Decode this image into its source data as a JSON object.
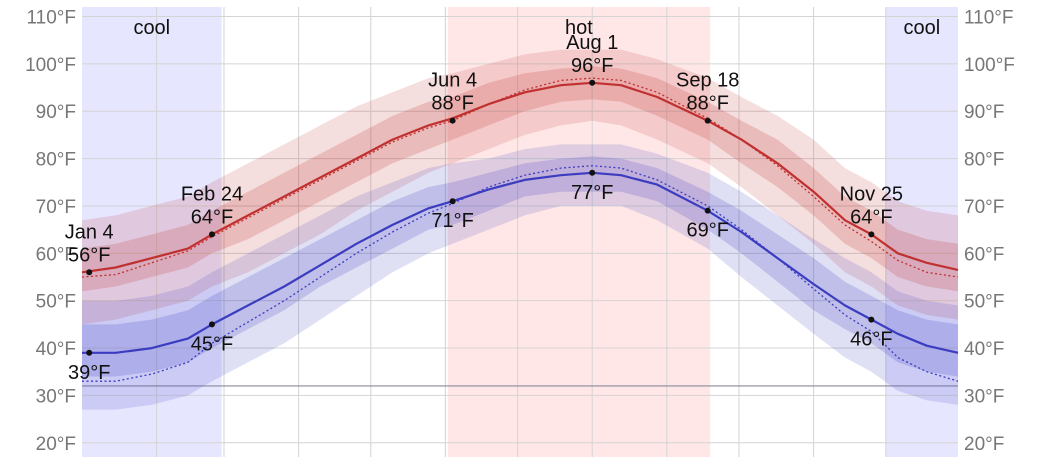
{
  "chart_data": {
    "type": "line",
    "y_ticks": [
      "20°F",
      "30°F",
      "40°F",
      "50°F",
      "60°F",
      "70°F",
      "80°F",
      "90°F",
      "100°F",
      "110°F"
    ],
    "ylim": [
      17,
      112
    ],
    "day_range": [
      1,
      365
    ],
    "freezing_line_f": 32,
    "grid": true,
    "bands": [
      {
        "label": "cool",
        "start_day": 1,
        "end_day": 59,
        "color": "#e6e6ff"
      },
      {
        "label": "hot",
        "start_day": 153,
        "end_day": 262,
        "color": "#ffe7e7"
      },
      {
        "label": "cool",
        "start_day": 335,
        "end_day": 365,
        "color": "#e6e6ff"
      }
    ],
    "series": [
      {
        "color": "#c03030",
        "x": [
          1,
          15,
          30,
          45,
          55,
          70,
          85,
          100,
          115,
          130,
          145,
          155,
          170,
          185,
          200,
          213,
          225,
          240,
          261,
          275,
          290,
          305,
          318,
          329,
          340,
          352,
          365
        ],
        "values": [
          56,
          57,
          59,
          61,
          64,
          68,
          72,
          76,
          80,
          84,
          87,
          88.5,
          91.5,
          94,
          95.5,
          96,
          95.5,
          93,
          88,
          84,
          79,
          73,
          67,
          64,
          60,
          58,
          56.5
        ],
        "p25_p75": [
          [
            52,
            61
          ],
          [
            53,
            62
          ],
          [
            55,
            64
          ],
          [
            57,
            66
          ],
          [
            60,
            69
          ],
          [
            63,
            73
          ],
          [
            67,
            77
          ],
          [
            71,
            81
          ],
          [
            75,
            85
          ],
          [
            79,
            89
          ],
          [
            82,
            92
          ],
          [
            84,
            93
          ],
          [
            87,
            96
          ],
          [
            90,
            98
          ],
          [
            92,
            99
          ],
          [
            92.5,
            99.5
          ],
          [
            92,
            99
          ],
          [
            89,
            97
          ],
          [
            84,
            92
          ],
          [
            79,
            88
          ],
          [
            74,
            84
          ],
          [
            68,
            78
          ],
          [
            62,
            72
          ],
          [
            59,
            69
          ],
          [
            55,
            65
          ],
          [
            53,
            63
          ],
          [
            52,
            62
          ]
        ],
        "p10_p90": [
          [
            45,
            67
          ],
          [
            46,
            68
          ],
          [
            48,
            70
          ],
          [
            50,
            72
          ],
          [
            53,
            75
          ],
          [
            56,
            79
          ],
          [
            60,
            83
          ],
          [
            64,
            87
          ],
          [
            69,
            91
          ],
          [
            73,
            94
          ],
          [
            77,
            97
          ],
          [
            79,
            98
          ],
          [
            82,
            100
          ],
          [
            85,
            102
          ],
          [
            87,
            103
          ],
          [
            88,
            103
          ],
          [
            87,
            103
          ],
          [
            84,
            101
          ],
          [
            79,
            97
          ],
          [
            74,
            93
          ],
          [
            68,
            89
          ],
          [
            62,
            84
          ],
          [
            56,
            78
          ],
          [
            53,
            75
          ],
          [
            49,
            71
          ],
          [
            47,
            69
          ],
          [
            46,
            68
          ]
        ],
        "normal": [
          55,
          55.5,
          58,
          60.5,
          63.5,
          67.5,
          71.5,
          75.5,
          79.5,
          83.5,
          86.5,
          88,
          91.5,
          94.5,
          96.5,
          97,
          96.5,
          94,
          88.5,
          84,
          78.5,
          72,
          66,
          62.5,
          58.5,
          56,
          55
        ]
      },
      {
        "color": "#3c3cc0",
        "x": [
          1,
          15,
          30,
          45,
          55,
          70,
          85,
          100,
          115,
          130,
          145,
          155,
          170,
          185,
          200,
          213,
          225,
          240,
          261,
          275,
          290,
          305,
          318,
          329,
          340,
          352,
          365
        ],
        "values": [
          39,
          39,
          40,
          42,
          45,
          49,
          53,
          57.5,
          62,
          66,
          69.5,
          71,
          73.5,
          75.5,
          76.5,
          77,
          76.5,
          74.5,
          69,
          64.5,
          59,
          53.5,
          49,
          46,
          43,
          40.5,
          39
        ],
        "p25_p75": [
          [
            34,
            45
          ],
          [
            34,
            45
          ],
          [
            35,
            46
          ],
          [
            37,
            48
          ],
          [
            40,
            51
          ],
          [
            44,
            55
          ],
          [
            48,
            59
          ],
          [
            53,
            63
          ],
          [
            57,
            67
          ],
          [
            61,
            71
          ],
          [
            65,
            74
          ],
          [
            66,
            75
          ],
          [
            69,
            77
          ],
          [
            72,
            79
          ],
          [
            73,
            80
          ],
          [
            73,
            80.5
          ],
          [
            73,
            80
          ],
          [
            71,
            78
          ],
          [
            65,
            73
          ],
          [
            60,
            69
          ],
          [
            54,
            64
          ],
          [
            48,
            59
          ],
          [
            44,
            54
          ],
          [
            41,
            51
          ],
          [
            37,
            48
          ],
          [
            35,
            46
          ],
          [
            34,
            45
          ]
        ],
        "p10_p90": [
          [
            27,
            50
          ],
          [
            27,
            50
          ],
          [
            28,
            51
          ],
          [
            30,
            53
          ],
          [
            33,
            56
          ],
          [
            37,
            60
          ],
          [
            41,
            64
          ],
          [
            46,
            68
          ],
          [
            51,
            72
          ],
          [
            56,
            75
          ],
          [
            60,
            78
          ],
          [
            62,
            79
          ],
          [
            65,
            80
          ],
          [
            68,
            82
          ],
          [
            70,
            83
          ],
          [
            70,
            83
          ],
          [
            70,
            83
          ],
          [
            67,
            81
          ],
          [
            61,
            77
          ],
          [
            55,
            73
          ],
          [
            49,
            68
          ],
          [
            43,
            63
          ],
          [
            38,
            59
          ],
          [
            35,
            56
          ],
          [
            31,
            52
          ],
          [
            29,
            50
          ],
          [
            28,
            49
          ]
        ],
        "normal": [
          33,
          33,
          34.5,
          37,
          41,
          45.5,
          50,
          55,
          60,
          64.5,
          68.5,
          70.5,
          74,
          76.5,
          78,
          78.5,
          78,
          75.5,
          70,
          65,
          59,
          52.5,
          47,
          43.5,
          38,
          35,
          33
        ]
      }
    ],
    "annotations": [
      {
        "series": 0,
        "day": 4,
        "value": 56,
        "date": "Jan 4",
        "temp": "56°F",
        "pos": "above"
      },
      {
        "series": 0,
        "day": 55,
        "value": 64,
        "date": "Feb 24",
        "temp": "64°F",
        "pos": "above"
      },
      {
        "series": 0,
        "day": 155,
        "value": 88,
        "date": "Jun 4",
        "temp": "88°F",
        "pos": "above"
      },
      {
        "series": 0,
        "day": 213,
        "value": 96,
        "date": "Aug 1",
        "temp": "96°F",
        "pos": "above"
      },
      {
        "series": 0,
        "day": 261,
        "value": 88,
        "date": "Sep 18",
        "temp": "88°F",
        "pos": "above"
      },
      {
        "series": 0,
        "day": 329,
        "value": 64,
        "date": "Nov 25",
        "temp": "64°F",
        "pos": "above"
      },
      {
        "series": 1,
        "day": 4,
        "value": 39,
        "temp": "39°F",
        "pos": "below"
      },
      {
        "series": 1,
        "day": 55,
        "value": 45,
        "temp": "45°F",
        "pos": "below"
      },
      {
        "series": 1,
        "day": 155,
        "value": 71,
        "temp": "71°F",
        "pos": "below"
      },
      {
        "series": 1,
        "day": 213,
        "value": 77,
        "temp": "77°F",
        "pos": "below"
      },
      {
        "series": 1,
        "day": 261,
        "value": 69,
        "temp": "69°F",
        "pos": "below"
      },
      {
        "series": 1,
        "day": 329,
        "value": 46,
        "temp": "46°F",
        "pos": "below"
      }
    ]
  }
}
